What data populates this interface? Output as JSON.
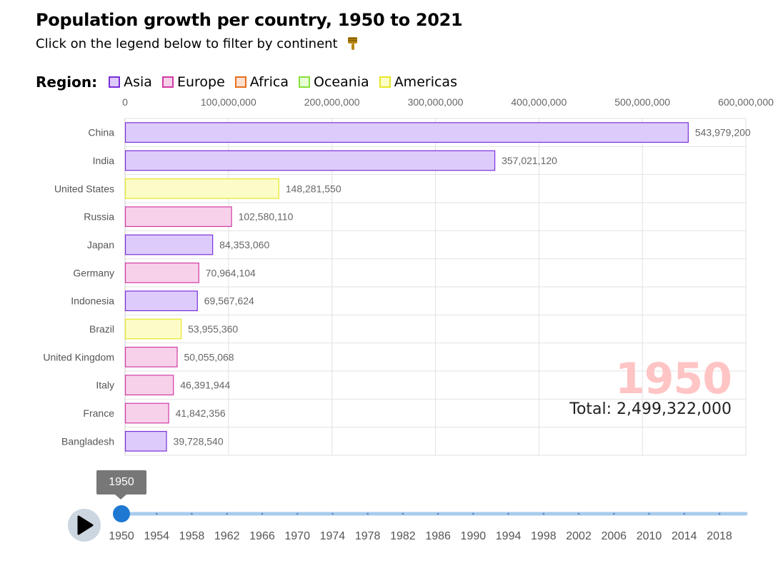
{
  "header": {
    "title": "Population growth per country, 1950 to 2021",
    "subtitle": "Click on the legend below to filter by continent",
    "subtitle_icon": "pointing-down-hand-icon"
  },
  "legend": {
    "title": "Region:",
    "items": [
      {
        "label": "Asia",
        "fill": "#ddccfb",
        "stroke": "#7a2fd9"
      },
      {
        "label": "Europe",
        "fill": "#f7d1ea",
        "stroke": "#d13aa6"
      },
      {
        "label": "Africa",
        "fill": "#fde0d0",
        "stroke": "#e86f1f"
      },
      {
        "label": "Oceania",
        "fill": "#e9fcd8",
        "stroke": "#86e23a"
      },
      {
        "label": "Americas",
        "fill": "#fcfcc8",
        "stroke": "#e6e62a"
      }
    ]
  },
  "chart_data": {
    "type": "bar",
    "orientation": "horizontal",
    "categories": [
      "China",
      "India",
      "United States",
      "Russia",
      "Japan",
      "Germany",
      "Indonesia",
      "Brazil",
      "United Kingdom",
      "Italy",
      "France",
      "Bangladesh"
    ],
    "values": [
      543979200,
      357021120,
      148281550,
      102580110,
      84353060,
      70964104,
      69567624,
      53955360,
      50055068,
      46391944,
      41842356,
      39728540
    ],
    "value_labels": [
      "543,979,200",
      "357,021,120",
      "148,281,550",
      "102,580,110",
      "84,353,060",
      "70,964,104",
      "69,567,624",
      "53,955,360",
      "50,055,068",
      "46,391,944",
      "41,842,356",
      "39,728,540"
    ],
    "regions": [
      "Asia",
      "Asia",
      "Americas",
      "Europe",
      "Asia",
      "Europe",
      "Asia",
      "Americas",
      "Europe",
      "Europe",
      "Europe",
      "Asia"
    ],
    "xlim": [
      0,
      600000000
    ],
    "x_ticks": [
      0,
      100000000,
      200000000,
      300000000,
      400000000,
      500000000,
      600000000
    ],
    "x_tick_labels": [
      "0",
      "100,000,000",
      "200,000,000",
      "300,000,000",
      "400,000,000",
      "500,000,000",
      "600,000,000"
    ],
    "axis_position": "top",
    "grid": true
  },
  "overlay": {
    "year": "1950",
    "total_text": "Total: 2,499,322,000"
  },
  "slider": {
    "current": "1950",
    "tooltip": "1950",
    "labels": [
      "1950",
      "1954",
      "1958",
      "1962",
      "1966",
      "1970",
      "1974",
      "1978",
      "1982",
      "1986",
      "1990",
      "1994",
      "1998",
      "2002",
      "2006",
      "2010",
      "2014",
      "2018"
    ],
    "range": [
      1950,
      2021
    ],
    "value_fraction": 0,
    "track_color": "#a8cbec",
    "handle_color": "#1f78d1",
    "play_icon": "play-icon"
  }
}
